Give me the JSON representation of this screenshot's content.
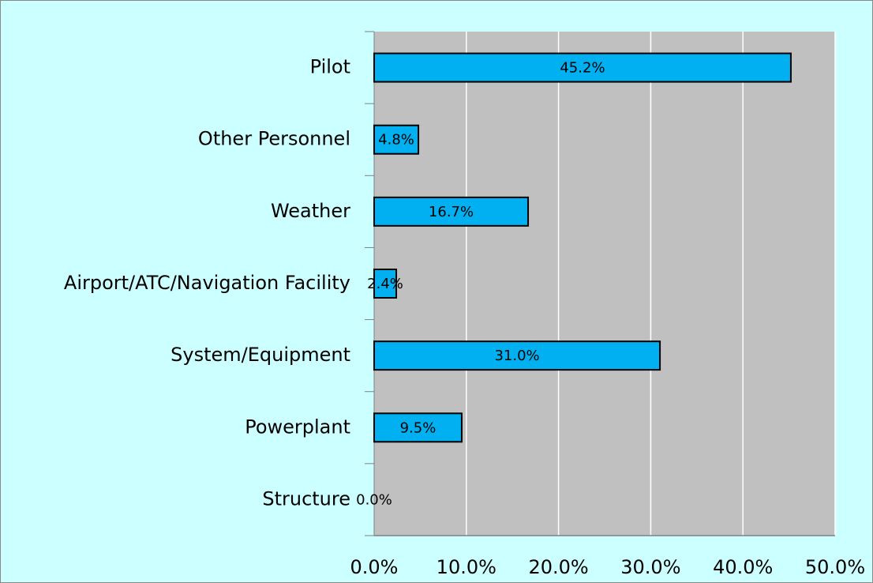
{
  "chart_data": {
    "type": "bar",
    "orientation": "horizontal",
    "categories": [
      "Pilot",
      "Other Personnel",
      "Weather",
      "Airport/ATC/Navigation Facility",
      "System/Equipment",
      "Powerplant",
      "Structure"
    ],
    "values": [
      45.2,
      4.8,
      16.7,
      2.4,
      31.0,
      9.5,
      0.0
    ],
    "value_labels": [
      "45.2%",
      "4.8%",
      "16.7%",
      "2.4%",
      "31.0%",
      "9.5%",
      "0.0%"
    ],
    "color": "#00b0f0",
    "xlim": [
      0,
      50
    ],
    "xticks": [
      {
        "value": 0,
        "label": "0.0%"
      },
      {
        "value": 10,
        "label": "10.0%"
      },
      {
        "value": 20,
        "label": "20.0%"
      },
      {
        "value": 30,
        "label": "30.0%"
      },
      {
        "value": 40,
        "label": "40.0%"
      },
      {
        "value": 50,
        "label": "50.0%"
      }
    ],
    "grid": true
  }
}
